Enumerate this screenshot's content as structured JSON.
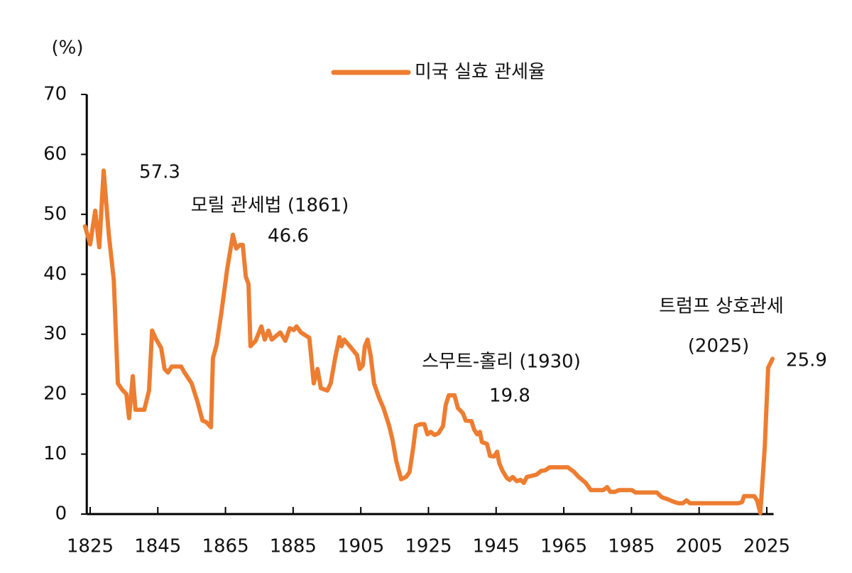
{
  "chart_data": {
    "type": "line",
    "y_unit": "(%)",
    "xlim": [
      1824,
      2027
    ],
    "xticks": [
      1825,
      1845,
      1865,
      1885,
      1905,
      1925,
      1945,
      1965,
      1985,
      2005,
      2025
    ],
    "ylim": [
      0,
      70
    ],
    "yticks": [
      0,
      10,
      20,
      30,
      40,
      50,
      60,
      70
    ],
    "legend": "top",
    "series": [
      {
        "name": "미국 실효 관세율",
        "color": "#ed7d31",
        "x": [
          1823.5,
          1825,
          1826.5,
          1827.7,
          1829,
          1830.5,
          1832,
          1833.2,
          1834.4,
          1835.7,
          1836.5,
          1837.6,
          1838.4,
          1841,
          1842.4,
          1843.3,
          1844.3,
          1846,
          1847,
          1848,
          1849.1,
          1851.9,
          1852.9,
          1855,
          1856.7,
          1858.2,
          1859.4,
          1860.7,
          1861.3,
          1862.4,
          1863.8,
          1865.5,
          1867.2,
          1868.2,
          1869.3,
          1870.1,
          1871,
          1871.8,
          1872.4,
          1873.9,
          1875.6,
          1876.6,
          1877.7,
          1878.7,
          1881.2,
          1882.7,
          1884,
          1885.2,
          1886,
          1887.3,
          1889.8,
          1891.1,
          1892.2,
          1893.2,
          1895.1,
          1896.1,
          1897.4,
          1898.7,
          1899.3,
          1900.1,
          1902.2,
          1903.9,
          1904.7,
          1905.6,
          1906.2,
          1907,
          1907.9,
          1908.9,
          1910.4,
          1911.7,
          1913.4,
          1914.4,
          1915.5,
          1916.9,
          1918.4,
          1919.4,
          1920.5,
          1921.3,
          1922.6,
          1923.8,
          1924.7,
          1925.7,
          1926.8,
          1928,
          1929.3,
          1930.1,
          1931,
          1932.7,
          1933.7,
          1935.2,
          1936,
          1937.7,
          1938.5,
          1939.4,
          1940.2,
          1940.8,
          1942.3,
          1943.2,
          1944.4,
          1945.3,
          1945.9,
          1946.9,
          1948.2,
          1949,
          1949.9,
          1951.1,
          1952.2,
          1953.2,
          1954.1,
          1955.7,
          1957,
          1958.3,
          1959.5,
          1960.8,
          1966.2,
          1967.9,
          1969.4,
          1971.5,
          1973,
          1976.7,
          1977.8,
          1978.8,
          1980.1,
          1981.3,
          1985.1,
          1986.2,
          1992.5,
          1994,
          1995.6,
          1997.7,
          1999,
          2000.2,
          2001.3,
          2002.3,
          2016.6,
          2017.7,
          2018.3,
          2021.3,
          2022.1,
          2023.1,
          2024.4,
          2025.4,
          2026.7
        ],
        "values": [
          48,
          45,
          50.6,
          44.5,
          57.3,
          46.7,
          39,
          21.8,
          20.8,
          20,
          16,
          23,
          17.4,
          17.4,
          20.6,
          30.6,
          29.4,
          27.7,
          24.2,
          23.6,
          24.6,
          24.6,
          23.6,
          21.8,
          18.8,
          15.6,
          15.3,
          14.5,
          26,
          28.3,
          33.6,
          40.8,
          46.6,
          44.3,
          44.9,
          44.9,
          39.6,
          38.4,
          28,
          28.9,
          31.3,
          29.1,
          30.6,
          29.1,
          30.3,
          28.9,
          31,
          30.7,
          31.3,
          30.3,
          29.4,
          21.8,
          24.2,
          21,
          20.6,
          21.8,
          26,
          29.5,
          28,
          29.1,
          27.7,
          26.5,
          24.2,
          24.8,
          28,
          29.1,
          26.5,
          21.8,
          19.4,
          17.7,
          14.7,
          12.3,
          8.8,
          5.8,
          6.2,
          7,
          11.1,
          14.7,
          15,
          15,
          13.3,
          13.7,
          13.2,
          13.5,
          14.7,
          18.2,
          19.8,
          19.8,
          17.7,
          16.8,
          15.6,
          15.5,
          14.1,
          13.3,
          13.7,
          12,
          11.7,
          9.7,
          9.6,
          10.4,
          8.5,
          7.2,
          6,
          5.7,
          6.2,
          5.5,
          5.7,
          5.2,
          6.2,
          6.4,
          6.6,
          7.2,
          7.3,
          7.8,
          7.8,
          7.1,
          6.2,
          5.2,
          4,
          4,
          4.5,
          3.7,
          3.7,
          4,
          4,
          3.6,
          3.6,
          2.8,
          2.5,
          2,
          1.8,
          1.8,
          2.3,
          1.8,
          1.8,
          2,
          3,
          3,
          2.3,
          0.2,
          11.1,
          24.4,
          25.9
        ]
      }
    ],
    "annotations": [
      "57.3",
      "모릴 관세법 (1861)",
      "46.6",
      "스무트-홀리 (1930)",
      "19.8",
      "트럼프 상호관세",
      "(2025)",
      "25.9"
    ]
  }
}
